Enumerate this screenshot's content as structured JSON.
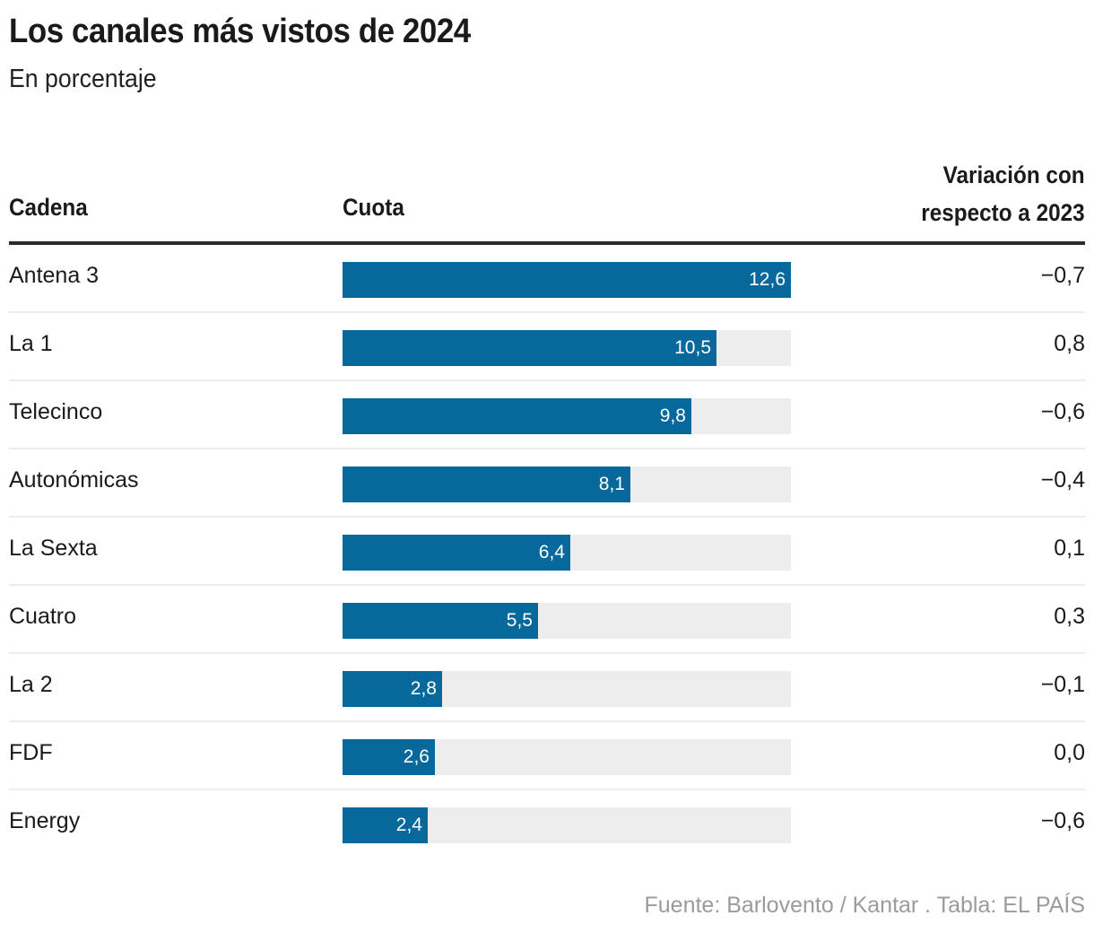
{
  "header": {
    "title": "Los canales más vistos de 2024",
    "subtitle": "En porcentaje"
  },
  "table": {
    "columns": {
      "cadena": "Cadena",
      "cuota": "Cuota",
      "variacion_line1": "Variación con",
      "variacion_line2": "respecto a 2023"
    }
  },
  "colors": {
    "bar": "#07699b",
    "track": "#ededed",
    "source_text": "#9b9b9b"
  },
  "footer": {
    "source": "Fuente: Barlovento / Kantar . Tabla: EL PAÍS"
  },
  "chart_data": {
    "type": "table",
    "title": "Los canales más vistos de 2024",
    "subtitle": "En porcentaje",
    "columns": [
      "Cadena",
      "Cuota",
      "Variación con respecto a 2023"
    ],
    "max_value": 12.6,
    "rows": [
      {
        "cadena": "Antena 3",
        "cuota": 12.6,
        "cuota_label": "12,6",
        "variacion": -0.7,
        "variacion_label": "−0,7"
      },
      {
        "cadena": "La 1",
        "cuota": 10.5,
        "cuota_label": "10,5",
        "variacion": 0.8,
        "variacion_label": "0,8"
      },
      {
        "cadena": "Telecinco",
        "cuota": 9.8,
        "cuota_label": "9,8",
        "variacion": -0.6,
        "variacion_label": "−0,6"
      },
      {
        "cadena": "Autonómicas",
        "cuota": 8.1,
        "cuota_label": "8,1",
        "variacion": -0.4,
        "variacion_label": "−0,4"
      },
      {
        "cadena": "La Sexta",
        "cuota": 6.4,
        "cuota_label": "6,4",
        "variacion": 0.1,
        "variacion_label": "0,1"
      },
      {
        "cadena": "Cuatro",
        "cuota": 5.5,
        "cuota_label": "5,5",
        "variacion": 0.3,
        "variacion_label": "0,3"
      },
      {
        "cadena": "La 2",
        "cuota": 2.8,
        "cuota_label": "2,8",
        "variacion": -0.1,
        "variacion_label": "−0,1"
      },
      {
        "cadena": "FDF",
        "cuota": 2.6,
        "cuota_label": "2,6",
        "variacion": 0.0,
        "variacion_label": "0,0"
      },
      {
        "cadena": "Energy",
        "cuota": 2.4,
        "cuota_label": "2,4",
        "variacion": -0.6,
        "variacion_label": "−0,6"
      }
    ],
    "source": "Fuente: Barlovento / Kantar . Tabla: EL PAÍS"
  }
}
